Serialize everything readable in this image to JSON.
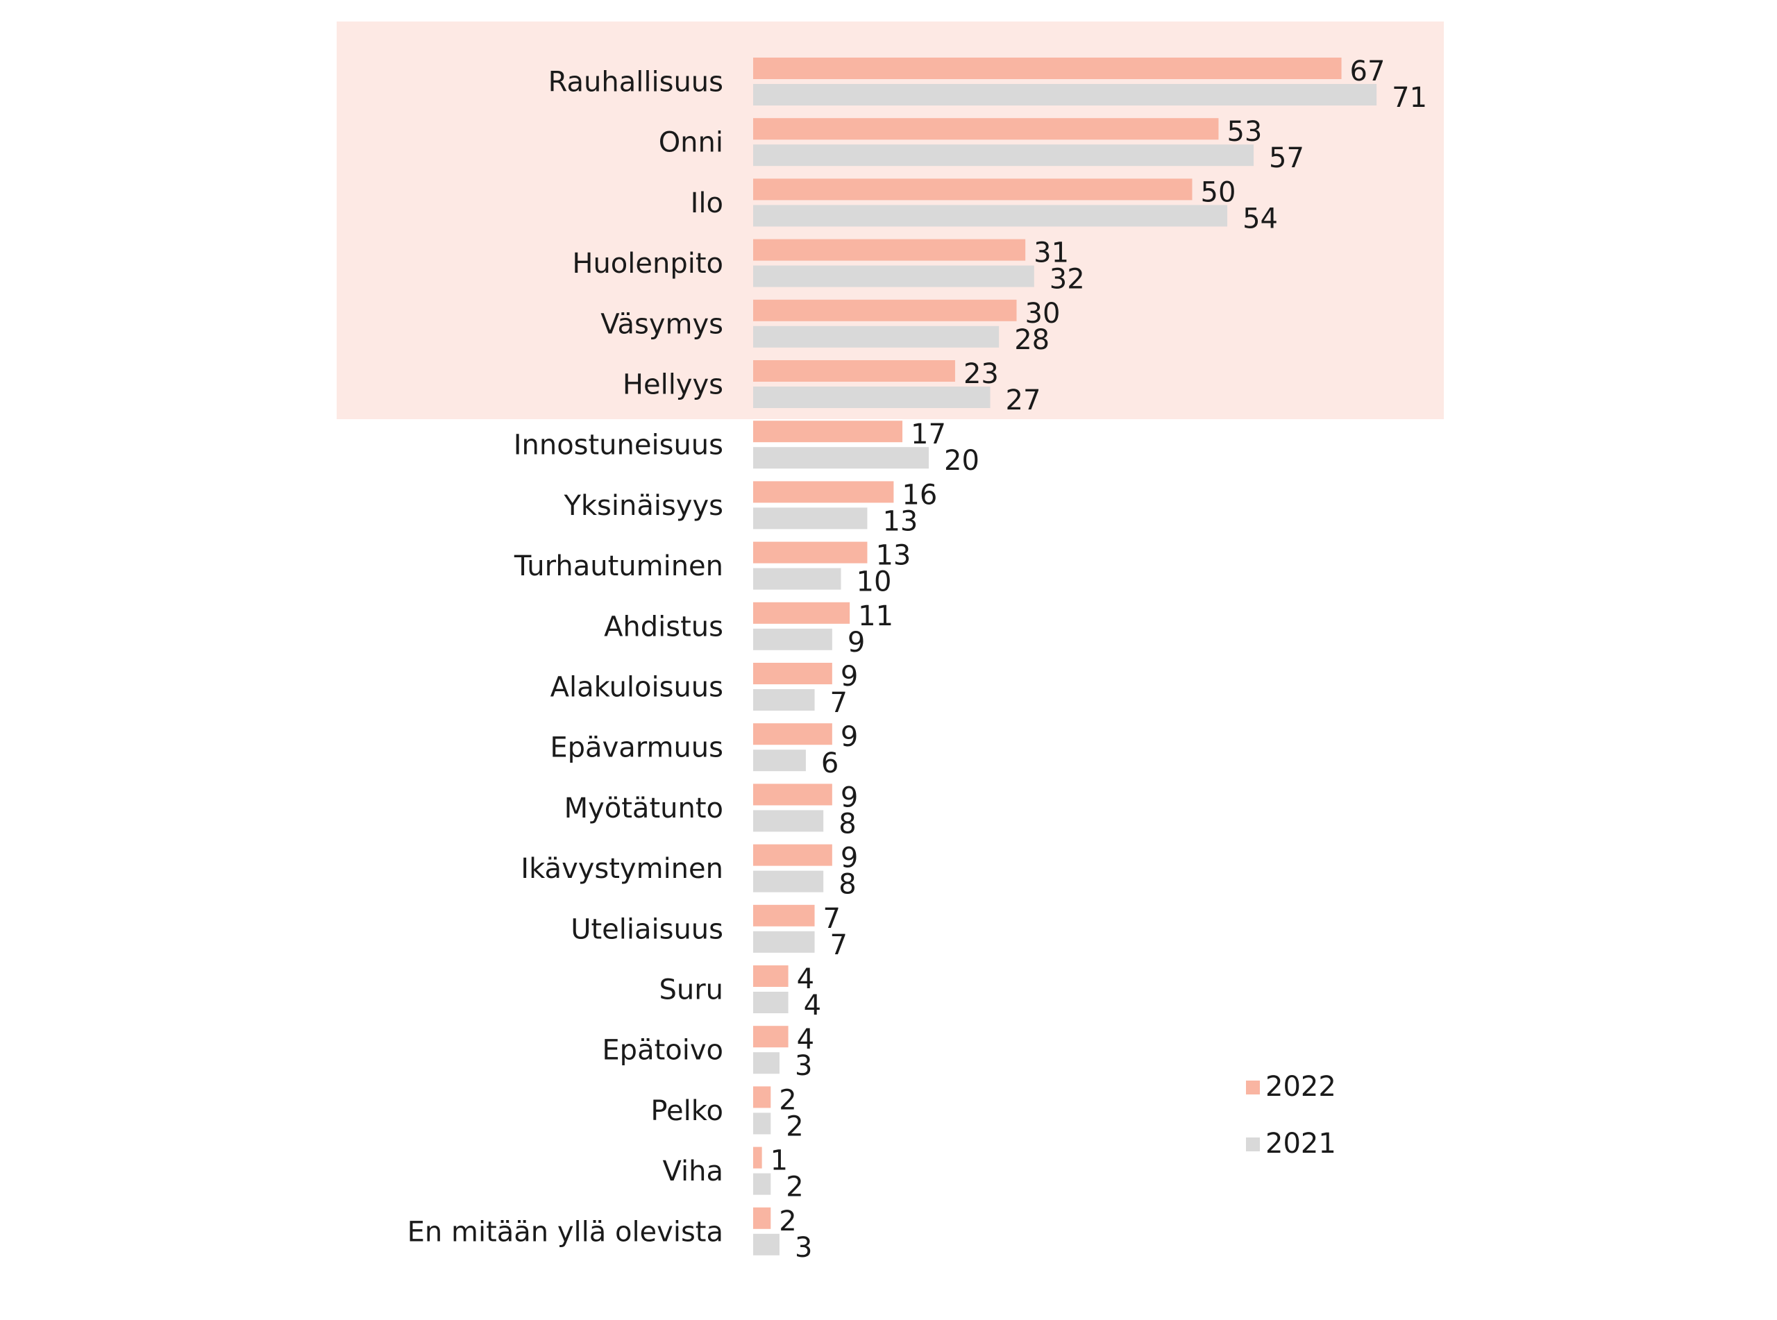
{
  "chart_data": {
    "type": "bar",
    "orientation": "horizontal",
    "categories": [
      "Rauhallisuus",
      "Onni",
      "Ilo",
      "Huolenpito",
      "Väsymys",
      "Hellyys",
      "Innostuneisuus",
      "Yksinäisyys",
      "Turhautuminen",
      "Ahdistus",
      "Alakuloisuus",
      "Epävarmuus",
      "Myötätunto",
      "Ikävystyminen",
      "Uteliaisuus",
      "Suru",
      "Epätoivo",
      "Pelko",
      "Viha",
      "En mitään yllä olevista"
    ],
    "series": [
      {
        "name": "2022",
        "color": "#f9b5a2",
        "values": [
          67,
          53,
          50,
          31,
          30,
          23,
          17,
          16,
          13,
          11,
          9,
          9,
          9,
          9,
          7,
          4,
          4,
          2,
          1,
          2
        ]
      },
      {
        "name": "2021",
        "color": "#d9d9d9",
        "values": [
          71,
          57,
          54,
          32,
          28,
          27,
          20,
          13,
          10,
          9,
          7,
          6,
          8,
          8,
          7,
          4,
          3,
          2,
          2,
          3
        ]
      }
    ],
    "xlim": [
      0,
      71
    ],
    "grid": false,
    "legend_placement": "bottom-right",
    "highlight": {
      "color": "#fde9e4",
      "categories": [
        "Rauhallisuus",
        "Onni",
        "Ilo",
        "Huolenpito",
        "Väsymys",
        "Hellyys"
      ]
    }
  }
}
